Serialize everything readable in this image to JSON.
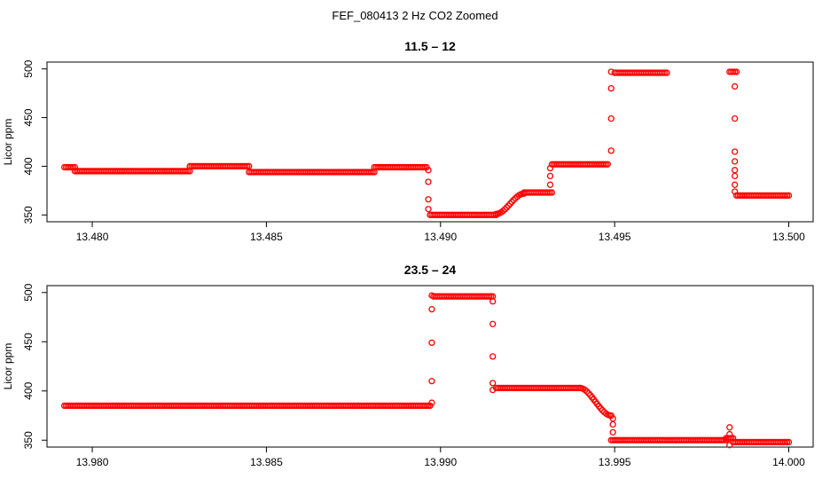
{
  "figure_title": "FEF_080413  2 Hz CO2 Zoomed",
  "chart_data": [
    {
      "type": "scatter",
      "title": "11.5 – 12",
      "xlabel": "",
      "ylabel": "Licor ppm",
      "xlim": [
        13.4787,
        13.5007
      ],
      "ylim": [
        343,
        507
      ],
      "xticks": [
        13.48,
        13.485,
        13.49,
        13.495,
        13.5
      ],
      "xtick_labels": [
        "13.480",
        "13.485",
        "13.490",
        "13.495",
        "13.500"
      ],
      "yticks": [
        350,
        400,
        450,
        500
      ],
      "ytick_labels": [
        "350",
        "400",
        "450",
        "500"
      ],
      "grid": false,
      "series": [
        {
          "color": "#ff0000",
          "marker": "open-circle",
          "segments": [
            {
              "x0": 13.4792,
              "x1": 13.4795,
              "y": 399
            },
            {
              "x0": 13.4795,
              "x1": 13.4828,
              "y": 395
            },
            {
              "x0": 13.4828,
              "x1": 13.4845,
              "y": 400
            },
            {
              "x0": 13.4845,
              "x1": 13.4881,
              "y": 394
            },
            {
              "x0": 13.4881,
              "x1": 13.4896,
              "y": 399
            },
            {
              "x0": 13.4897,
              "x1": 13.4916,
              "y": 350
            },
            {
              "x0": 13.4916,
              "x1": 13.4924,
              "y0": 351,
              "y1": 372
            },
            {
              "x0": 13.4924,
              "x1": 13.4932,
              "y": 373
            },
            {
              "x0": 13.4932,
              "x1": 13.4948,
              "y": 402
            },
            {
              "x0": 13.495,
              "x1": 13.4965,
              "y": 496
            },
            {
              "x0": 13.4983,
              "x1": 13.4985,
              "y": 497
            },
            {
              "x0": 13.4985,
              "x1": 13.5,
              "y": 370
            }
          ],
          "transitions": [
            {
              "x": 13.48965,
              "y": [
                396,
                384,
                366,
                356
              ]
            },
            {
              "x": 13.49315,
              "y": [
                381,
                390,
                398
              ]
            },
            {
              "x": 13.4949,
              "y": [
                416,
                449,
                480,
                497
              ]
            },
            {
              "x": 13.49845,
              "y": [
                482,
                449,
                415,
                405,
                396,
                390,
                381,
                374
              ]
            }
          ]
        }
      ]
    },
    {
      "type": "scatter",
      "title": "23.5 – 24",
      "xlabel": "",
      "ylabel": "Licor ppm",
      "xlim": [
        13.9787,
        14.0007
      ],
      "ylim": [
        343,
        507
      ],
      "xticks": [
        13.98,
        13.985,
        13.99,
        13.995,
        14.0
      ],
      "xtick_labels": [
        "13.980",
        "13.985",
        "13.990",
        "13.995",
        "14.000"
      ],
      "yticks": [
        350,
        400,
        450,
        500
      ],
      "ytick_labels": [
        "350",
        "400",
        "450",
        "500"
      ],
      "grid": false,
      "series": [
        {
          "color": "#ff0000",
          "marker": "open-circle",
          "segments": [
            {
              "x0": 13.9792,
              "x1": 13.9897,
              "y": 385
            },
            {
              "x0": 13.9898,
              "x1": 13.9915,
              "y": 496
            },
            {
              "x0": 13.9916,
              "x1": 13.994,
              "y": 403
            },
            {
              "x0": 13.994,
              "x1": 13.9949,
              "y0": 403,
              "y1": 375
            },
            {
              "x0": 13.9949,
              "x1": 13.9982,
              "y": 350
            },
            {
              "x0": 13.9982,
              "x1": 13.9984,
              "y": 352
            },
            {
              "x0": 13.9984,
              "x1": 14.0,
              "y": 348
            }
          ],
          "transitions": [
            {
              "x": 13.98975,
              "y": [
                388,
                410,
                449,
                483,
                497
              ]
            },
            {
              "x": 13.9915,
              "y": [
                491,
                468,
                435,
                408,
                401
              ]
            },
            {
              "x": 13.99495,
              "y": [
                372,
                366,
                358
              ]
            },
            {
              "x": 13.9983,
              "y": [
                363,
                356,
                352,
                345
              ]
            }
          ]
        }
      ]
    }
  ]
}
